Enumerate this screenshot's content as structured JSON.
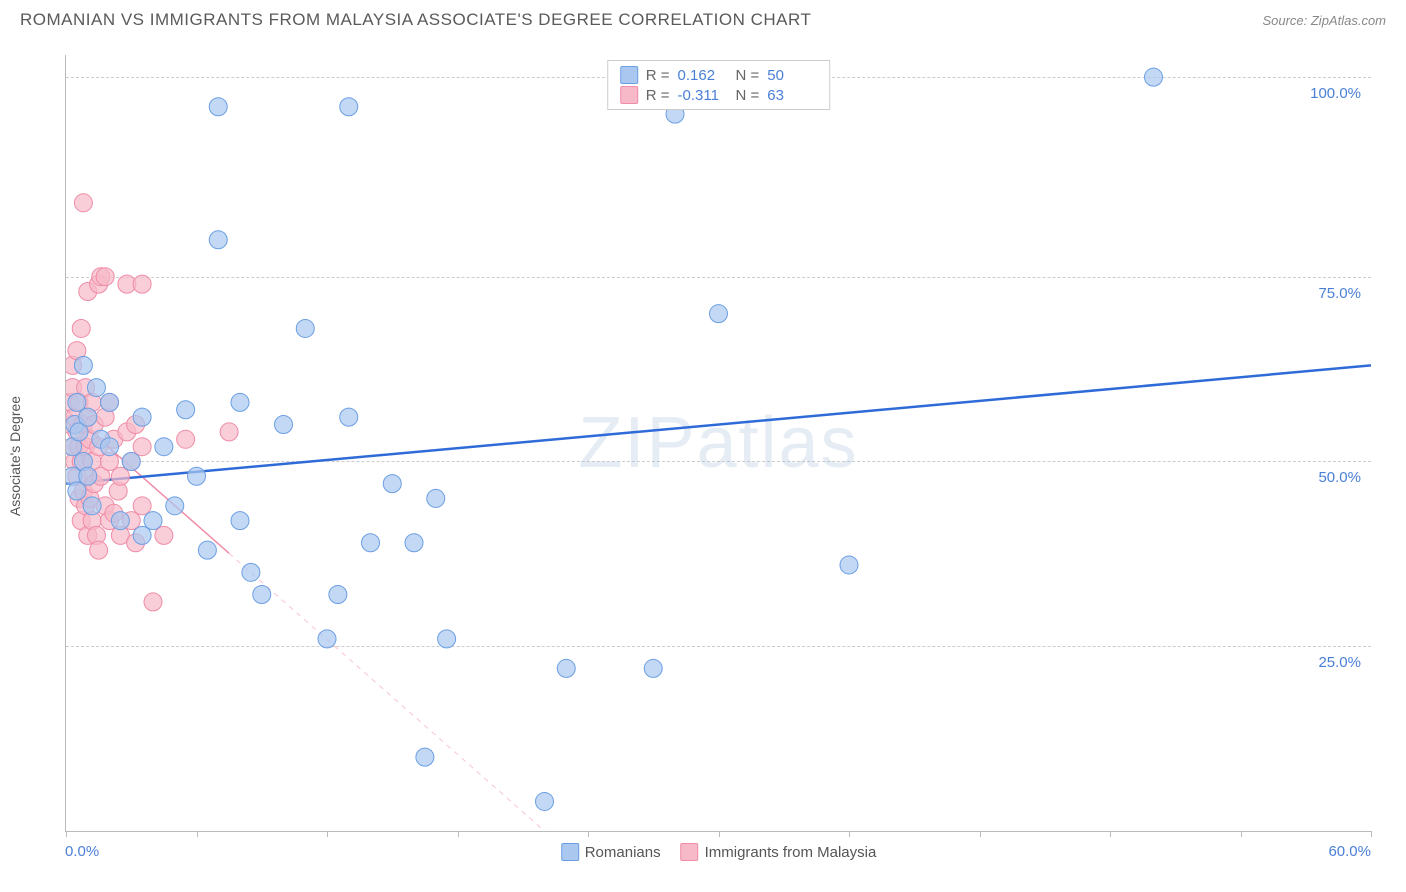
{
  "header": {
    "title": "ROMANIAN VS IMMIGRANTS FROM MALAYSIA ASSOCIATE'S DEGREE CORRELATION CHART",
    "source": "Source: ZipAtlas.com"
  },
  "y_axis": {
    "label": "Associate's Degree"
  },
  "watermark": "ZIPatlas",
  "chart": {
    "type": "scatter",
    "xlim": [
      0,
      60
    ],
    "ylim": [
      0,
      105
    ],
    "x_ticks": [
      0,
      6,
      12,
      18,
      24,
      30,
      36,
      42,
      48,
      54,
      60
    ],
    "y_gridlines": [
      25,
      50,
      75,
      102
    ],
    "y_tick_labels": [
      {
        "v": 25,
        "t": "25.0%"
      },
      {
        "v": 50,
        "t": "50.0%"
      },
      {
        "v": 75,
        "t": "75.0%"
      },
      {
        "v": 102,
        "t": "100.0%"
      }
    ],
    "x_origin_label": "0.0%",
    "x_max_label": "60.0%",
    "background_color": "#ffffff",
    "grid_color": "#cccccc",
    "series": {
      "romanians": {
        "label": "Romanians",
        "marker_fill": "#a9c7ef",
        "marker_stroke": "#6b9fe3",
        "marker_opacity": 0.7,
        "marker_radius": 9,
        "line_color": "#2f6bd8",
        "line_width": 2.5,
        "regression": {
          "x1": 0,
          "y1": 47,
          "x2": 60,
          "y2": 63
        },
        "points": [
          [
            0.3,
            48
          ],
          [
            0.3,
            52
          ],
          [
            0.4,
            55
          ],
          [
            0.5,
            46
          ],
          [
            0.5,
            58
          ],
          [
            0.6,
            54
          ],
          [
            0.8,
            50
          ],
          [
            0.8,
            63
          ],
          [
            1.0,
            48
          ],
          [
            1.0,
            56
          ],
          [
            1.2,
            44
          ],
          [
            1.4,
            60
          ],
          [
            1.6,
            53
          ],
          [
            2.0,
            52
          ],
          [
            2.0,
            58
          ],
          [
            2.5,
            42
          ],
          [
            3.0,
            50
          ],
          [
            3.5,
            40
          ],
          [
            3.5,
            56
          ],
          [
            4.0,
            42
          ],
          [
            4.5,
            52
          ],
          [
            5.0,
            44
          ],
          [
            5.5,
            57
          ],
          [
            6.0,
            48
          ],
          [
            6.5,
            38
          ],
          [
            7.0,
            80
          ],
          [
            7.0,
            98
          ],
          [
            8.0,
            42
          ],
          [
            8.0,
            58
          ],
          [
            8.5,
            35
          ],
          [
            9.0,
            32
          ],
          [
            10.0,
            55
          ],
          [
            11.0,
            68
          ],
          [
            12.0,
            26
          ],
          [
            12.5,
            32
          ],
          [
            13.0,
            98
          ],
          [
            13.0,
            56
          ],
          [
            14.0,
            39
          ],
          [
            15.0,
            47
          ],
          [
            16.0,
            39
          ],
          [
            16.5,
            10
          ],
          [
            17.0,
            45
          ],
          [
            17.5,
            26
          ],
          [
            22.0,
            4
          ],
          [
            23.0,
            22
          ],
          [
            27.0,
            22
          ],
          [
            28.0,
            97
          ],
          [
            30.0,
            70
          ],
          [
            36.0,
            36
          ],
          [
            50.0,
            102
          ]
        ]
      },
      "malaysia": {
        "label": "Immigrants from Malaysia",
        "marker_fill": "#f7b9c8",
        "marker_stroke": "#ef8ca7",
        "marker_opacity": 0.7,
        "marker_radius": 9,
        "line_color": "#ef8ca7",
        "line_width": 1.5,
        "regression": {
          "x1": 0,
          "y1": 57,
          "x2": 22,
          "y2": 0
        },
        "regression_solid_until_x": 7.5,
        "points": [
          [
            0.2,
            55
          ],
          [
            0.2,
            58
          ],
          [
            0.3,
            52
          ],
          [
            0.3,
            60
          ],
          [
            0.3,
            63
          ],
          [
            0.4,
            50
          ],
          [
            0.4,
            56
          ],
          [
            0.5,
            48
          ],
          [
            0.5,
            54
          ],
          [
            0.5,
            65
          ],
          [
            0.6,
            45
          ],
          [
            0.6,
            52
          ],
          [
            0.6,
            58
          ],
          [
            0.7,
            42
          ],
          [
            0.7,
            50
          ],
          [
            0.7,
            68
          ],
          [
            0.8,
            46
          ],
          [
            0.8,
            55
          ],
          [
            0.8,
            85
          ],
          [
            0.9,
            44
          ],
          [
            0.9,
            52
          ],
          [
            0.9,
            60
          ],
          [
            1.0,
            40
          ],
          [
            1.0,
            48
          ],
          [
            1.0,
            56
          ],
          [
            1.0,
            73
          ],
          [
            1.1,
            45
          ],
          [
            1.1,
            53
          ],
          [
            1.2,
            42
          ],
          [
            1.2,
            50
          ],
          [
            1.2,
            58
          ],
          [
            1.3,
            47
          ],
          [
            1.3,
            55
          ],
          [
            1.4,
            40
          ],
          [
            1.5,
            38
          ],
          [
            1.5,
            52
          ],
          [
            1.5,
            74
          ],
          [
            1.6,
            48
          ],
          [
            1.6,
            75
          ],
          [
            1.8,
            44
          ],
          [
            1.8,
            56
          ],
          [
            1.8,
            75
          ],
          [
            2.0,
            42
          ],
          [
            2.0,
            50
          ],
          [
            2.0,
            58
          ],
          [
            2.2,
            43
          ],
          [
            2.2,
            53
          ],
          [
            2.4,
            46
          ],
          [
            2.5,
            40
          ],
          [
            2.5,
            48
          ],
          [
            2.8,
            54
          ],
          [
            2.8,
            74
          ],
          [
            3.0,
            42
          ],
          [
            3.0,
            50
          ],
          [
            3.2,
            39
          ],
          [
            3.2,
            55
          ],
          [
            3.5,
            44
          ],
          [
            3.5,
            52
          ],
          [
            3.5,
            74
          ],
          [
            4.0,
            31
          ],
          [
            4.5,
            40
          ],
          [
            5.5,
            53
          ],
          [
            7.5,
            54
          ]
        ]
      }
    }
  },
  "legend_top": {
    "rows": [
      {
        "swatch_fill": "#a9c7ef",
        "swatch_stroke": "#6b9fe3",
        "r_label": "R =",
        "r_val": "0.162",
        "n_label": "N =",
        "n_val": "50"
      },
      {
        "swatch_fill": "#f7b9c8",
        "swatch_stroke": "#ef8ca7",
        "r_label": "R =",
        "r_val": "-0.311",
        "n_label": "N =",
        "n_val": "63"
      }
    ]
  },
  "legend_bottom": {
    "items": [
      {
        "swatch_fill": "#a9c7ef",
        "swatch_stroke": "#6b9fe3",
        "label": "Romanians"
      },
      {
        "swatch_fill": "#f7b9c8",
        "swatch_stroke": "#ef8ca7",
        "label": "Immigrants from Malaysia"
      }
    ]
  }
}
